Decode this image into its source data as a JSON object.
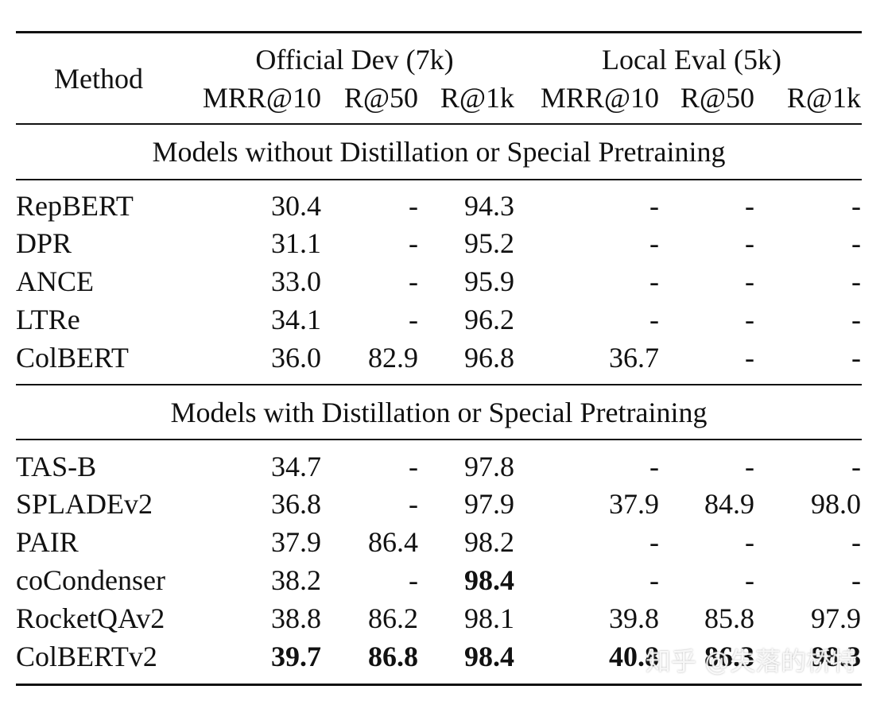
{
  "header": {
    "method": "Method",
    "group_official": "Official Dev (7k)",
    "group_local": "Local Eval (5k)",
    "columns": [
      "MRR@10",
      "R@50",
      "R@1k",
      "MRR@10",
      "R@50",
      "R@1k"
    ]
  },
  "sections": [
    {
      "title": "Models without Distillation or Special Pretraining",
      "rows": [
        {
          "method": "RepBERT",
          "values": [
            "30.4",
            "-",
            "94.3",
            "-",
            "-",
            "-"
          ]
        },
        {
          "method": "DPR",
          "values": [
            "31.1",
            "-",
            "95.2",
            "-",
            "-",
            "-"
          ]
        },
        {
          "method": "ANCE",
          "values": [
            "33.0",
            "-",
            "95.9",
            "-",
            "-",
            "-"
          ]
        },
        {
          "method": "LTRe",
          "values": [
            "34.1",
            "-",
            "96.2",
            "-",
            "-",
            "-"
          ]
        },
        {
          "method": "ColBERT",
          "values": [
            "36.0",
            "82.9",
            "96.8",
            "36.7",
            "-",
            "-"
          ]
        }
      ]
    },
    {
      "title": "Models with Distillation or Special Pretraining",
      "rows": [
        {
          "method": "TAS-B",
          "values": [
            "34.7",
            "-",
            "97.8",
            "-",
            "-",
            "-"
          ]
        },
        {
          "method": "SPLADEv2",
          "values": [
            "36.8",
            "-",
            "97.9",
            "37.9",
            "84.9",
            "98.0"
          ]
        },
        {
          "method": "PAIR",
          "values": [
            "37.9",
            "86.4",
            "98.2",
            "-",
            "-",
            "-"
          ]
        },
        {
          "method": "coCondenser",
          "values": [
            "38.2",
            "-",
            "98.4",
            "-",
            "-",
            "-"
          ]
        },
        {
          "method": "RocketQAv2",
          "values": [
            "38.8",
            "86.2",
            "98.1",
            "39.8",
            "85.8",
            "97.9"
          ]
        },
        {
          "method": "ColBERTv2",
          "values": [
            "39.7",
            "86.8",
            "98.4",
            "40.8",
            "86.3",
            "98.3"
          ]
        }
      ]
    }
  ],
  "watermark": "知乎 @失落的桥特"
}
